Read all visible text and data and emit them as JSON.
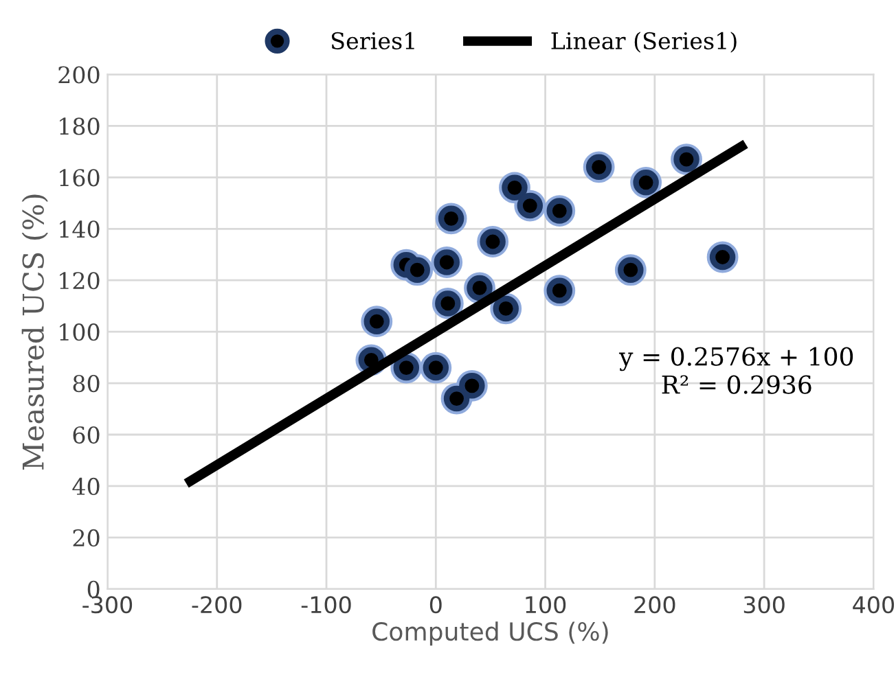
{
  "chart_data": {
    "type": "scatter",
    "xlabel": "Computed UCS (%)",
    "ylabel": "Measured UCS (%)",
    "xlim": [
      -300,
      400
    ],
    "xticks": [
      -300,
      -200,
      -100,
      0,
      100,
      200,
      300,
      400
    ],
    "ylim": [
      0,
      200
    ],
    "yticks": [
      0,
      20,
      40,
      60,
      80,
      100,
      120,
      140,
      160,
      180,
      200
    ],
    "grid": true,
    "legend": "top",
    "annotations": [
      "y = 0.2576x + 100\nR² = 0.2936"
    ],
    "series": [
      {
        "name": "Series1",
        "marker": "circle",
        "color": "#1f3864",
        "x": [
          -59,
          -54,
          -27,
          -17,
          14,
          10,
          11,
          40,
          52,
          64,
          72,
          86,
          113,
          113,
          149,
          192,
          178,
          262,
          -27,
          0,
          19,
          33,
          229
        ],
        "values": [
          89,
          104,
          126,
          124,
          144,
          127,
          111,
          117,
          135,
          109,
          156,
          149,
          147,
          116,
          164,
          158,
          124,
          129,
          86,
          86,
          74,
          79,
          167
        ]
      },
      {
        "name": "Linear (Series1)",
        "type": "line",
        "color": "#000000",
        "x": [
          -228,
          283
        ],
        "values": [
          41,
          173
        ]
      }
    ]
  }
}
